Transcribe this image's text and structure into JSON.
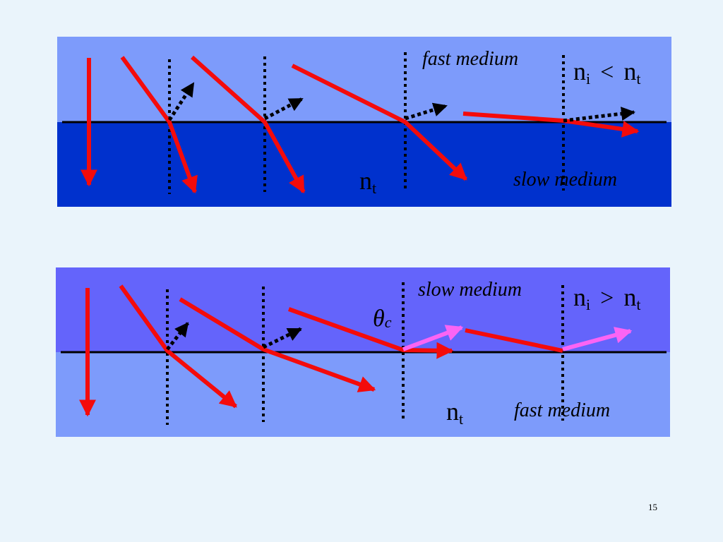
{
  "slide_number": "15",
  "panel_top": {
    "upper_medium_label": "fast medium",
    "lower_medium_label": "slow  medium",
    "relation": {
      "left": "n",
      "left_sub": "i",
      "symbol": "<",
      "right": "n",
      "right_sub": "t"
    },
    "lower_index": {
      "n": "n",
      "sub": "t"
    },
    "colors": {
      "upper": "#7d9bfb",
      "lower": "#0031cd",
      "ray": "#f40b0b",
      "reflected": "#000000"
    }
  },
  "panel_bottom": {
    "upper_medium_label": "slow medium",
    "lower_medium_label": "fast  medium",
    "relation": {
      "left": "n",
      "left_sub": "i",
      "symbol": ">",
      "right": "n",
      "right_sub": "t"
    },
    "lower_index": {
      "n": "n",
      "sub": "t"
    },
    "critical_angle": {
      "symbol": "θ",
      "sub": "c"
    },
    "colors": {
      "upper": "#6464fb",
      "lower": "#7d9bfb",
      "ray": "#f40b0b",
      "reflected": "#000000",
      "total_reflection": "#fb64f4"
    }
  }
}
